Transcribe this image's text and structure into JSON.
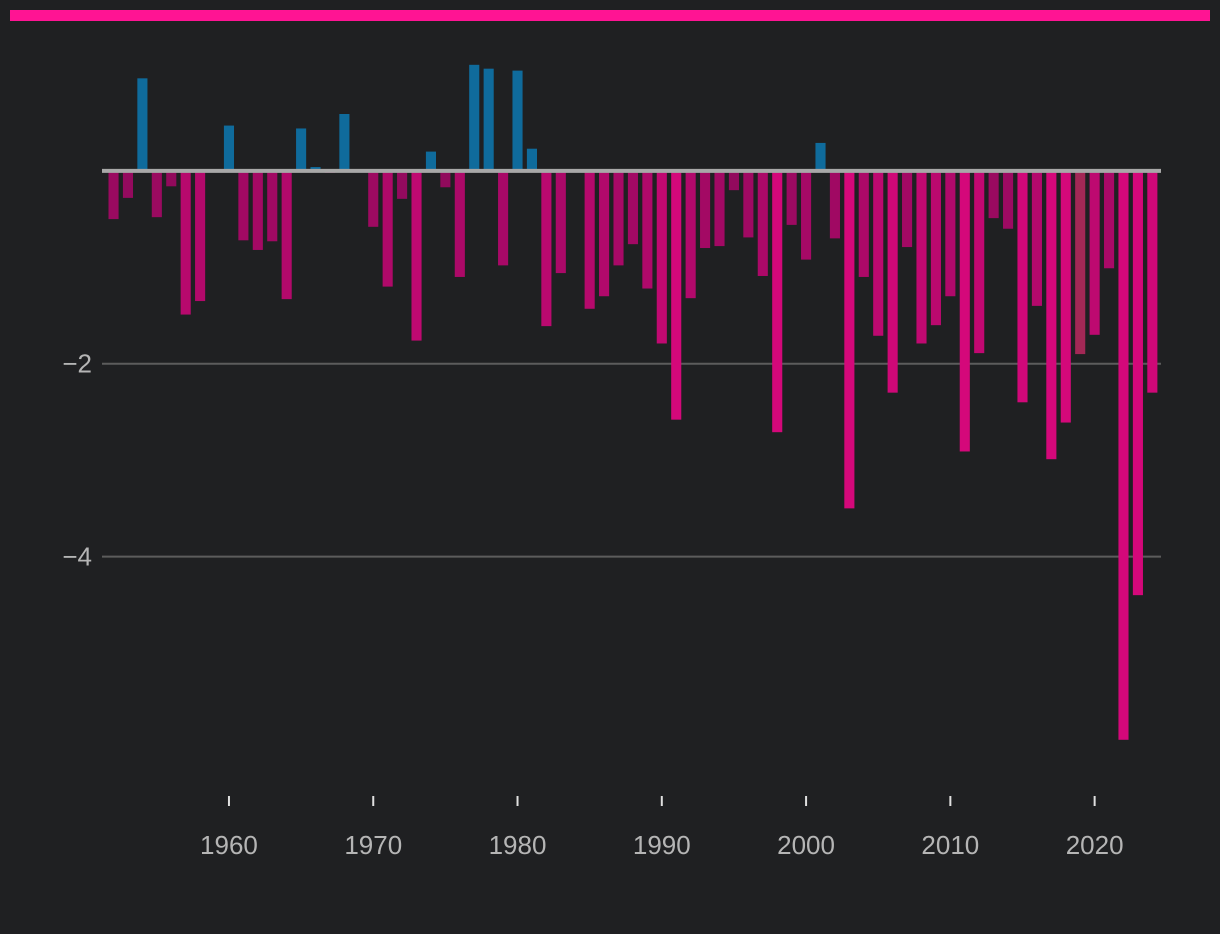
{
  "colors": {
    "accent_bar": "#ff1493",
    "positive": "#0f6b9c",
    "negative_dark": "#8c0a5a",
    "negative_bright": "#d4087a",
    "neutral": "#a32856",
    "grid": "#5c5c5c",
    "zero_line": "#a8a8a8",
    "tick_label": "#b5b5b5",
    "background": "#1f2022"
  },
  "chart_data": {
    "type": "bar",
    "x_ticks": [
      1960,
      1970,
      1980,
      1990,
      2000,
      2010,
      2020
    ],
    "y_ticks": [
      -4,
      -2
    ],
    "y_tick_labels": [
      "−4",
      "−2"
    ],
    "ylim": [
      -6.4,
      1.15
    ],
    "xlim": [
      1951.2,
      2024.6
    ],
    "grid": true,
    "x": [
      1952,
      1953,
      1954,
      1955,
      1956,
      1957,
      1958,
      1959,
      1960,
      1961,
      1962,
      1963,
      1964,
      1965,
      1966,
      1967,
      1968,
      1969,
      1970,
      1971,
      1972,
      1973,
      1974,
      1975,
      1976,
      1977,
      1978,
      1979,
      1980,
      1981,
      1982,
      1983,
      1984,
      1985,
      1986,
      1987,
      1988,
      1989,
      1990,
      1991,
      1992,
      1993,
      1994,
      1995,
      1996,
      1997,
      1998,
      1999,
      2000,
      2001,
      2002,
      2003,
      2004,
      2005,
      2006,
      2007,
      2008,
      2009,
      2010,
      2011,
      2012,
      2013,
      2014,
      2015,
      2016,
      2017,
      2018,
      2019,
      2020,
      2021,
      2022,
      2023,
      2024
    ],
    "values": [
      -0.5,
      -0.28,
      0.96,
      -0.48,
      -0.16,
      -1.49,
      -1.35,
      0.0,
      0.47,
      -0.72,
      -0.82,
      -0.73,
      -1.33,
      0.44,
      0.04,
      -0.02,
      0.59,
      0.0,
      -0.58,
      -1.2,
      -0.29,
      -1.76,
      0.2,
      -0.17,
      -1.1,
      1.1,
      1.06,
      -0.98,
      1.04,
      0.23,
      -1.61,
      -1.06,
      0.0,
      -1.43,
      -1.3,
      -0.98,
      -0.76,
      -1.22,
      -1.79,
      -2.58,
      -1.32,
      -0.8,
      -0.78,
      -0.2,
      -0.69,
      -1.09,
      -2.71,
      -0.56,
      -0.92,
      0.29,
      -0.7,
      -3.5,
      -1.1,
      -1.71,
      -2.3,
      -0.79,
      -1.79,
      -1.6,
      -1.3,
      -2.91,
      -1.89,
      -0.49,
      -0.6,
      -2.4,
      -1.4,
      -2.99,
      -2.61,
      -1.9,
      -1.7,
      -1.01,
      -5.9,
      -4.4,
      -2.3
    ]
  }
}
